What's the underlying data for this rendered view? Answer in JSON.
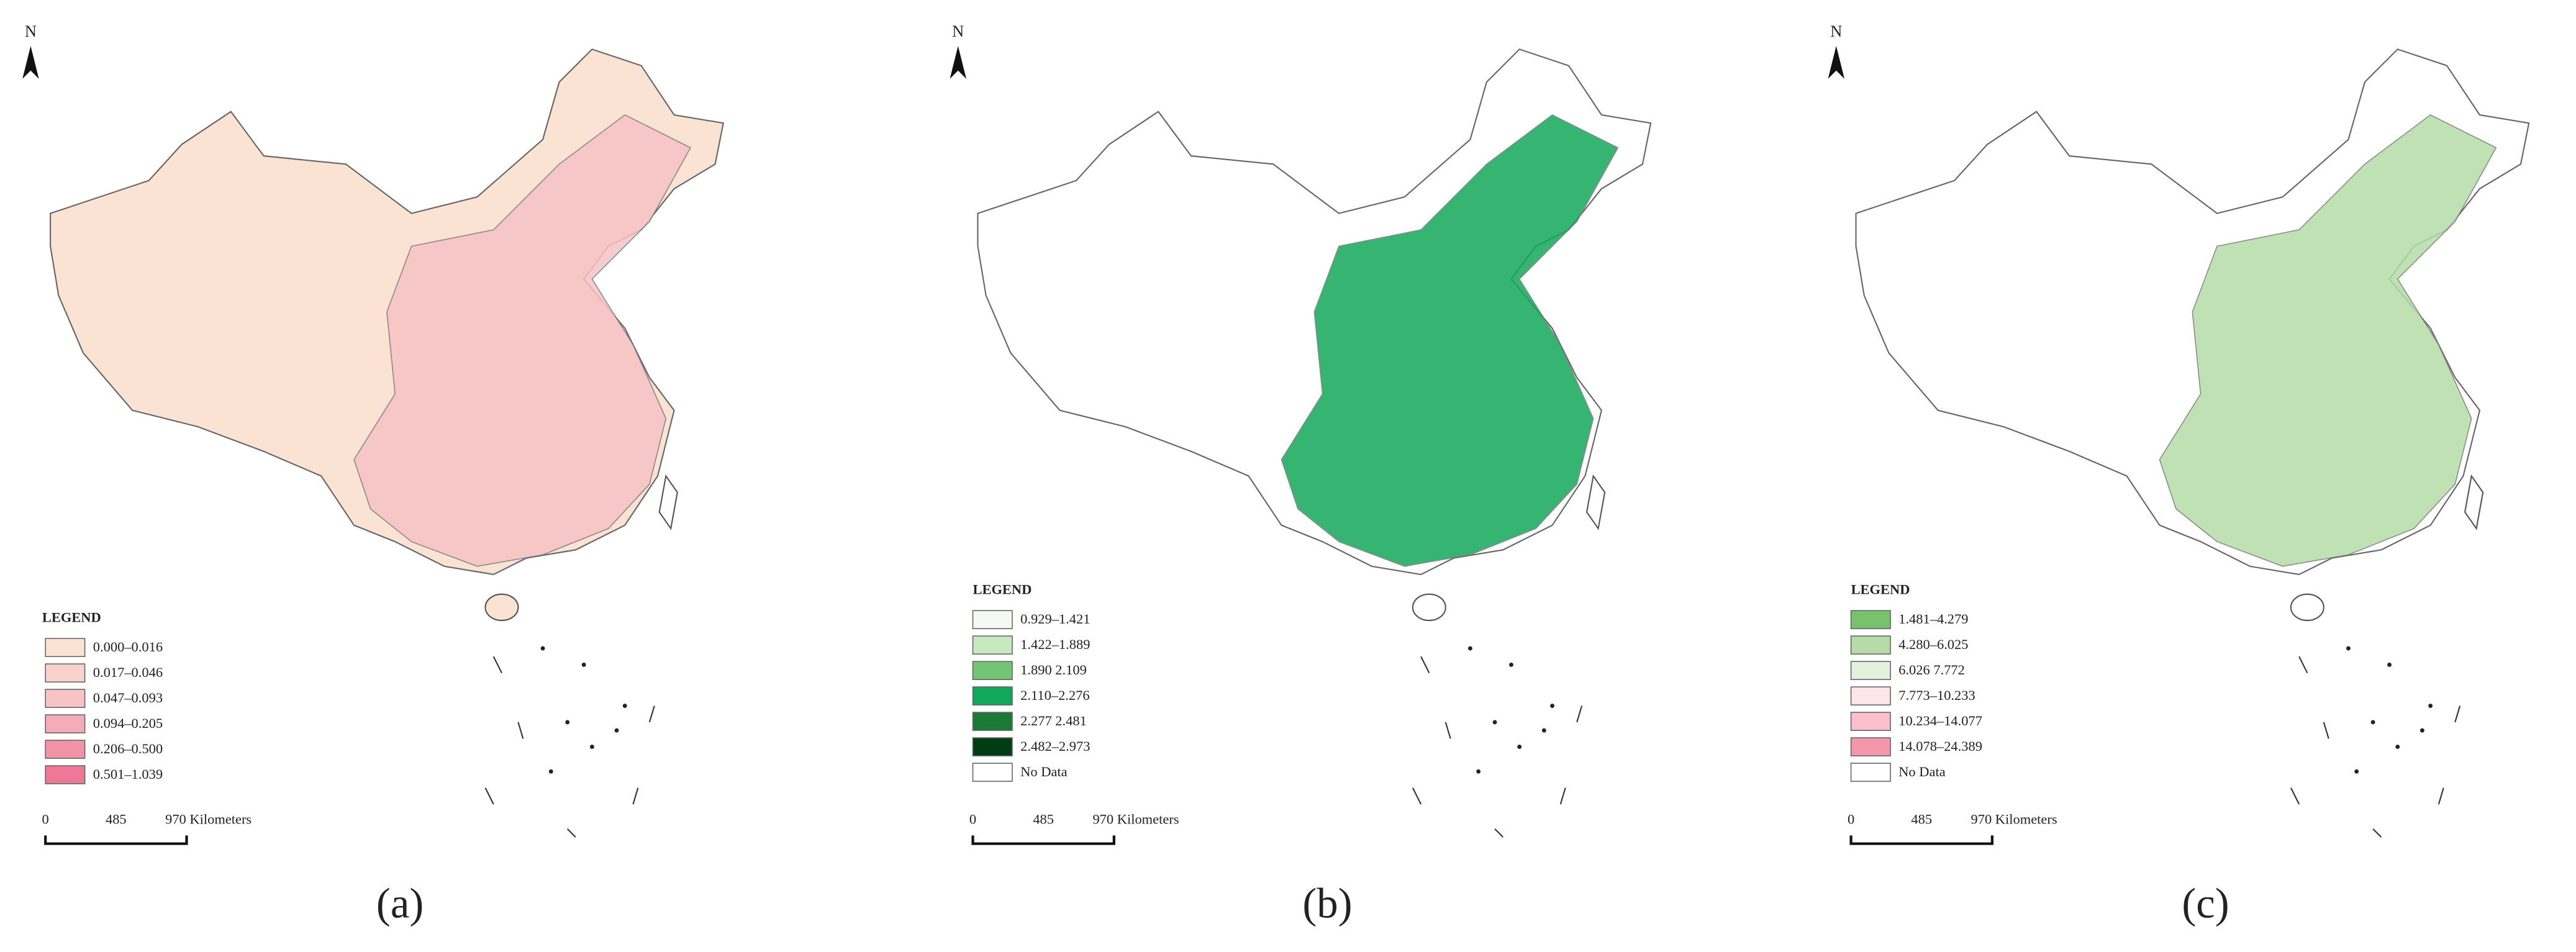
{
  "panels": [
    {
      "label": "(a)",
      "north": "N",
      "legend_title": "LEGEND",
      "legend": [
        {
          "label": "0.000–0.016",
          "color": "#fbe3d3"
        },
        {
          "label": "0.017–0.046",
          "color": "#f9d2cc"
        },
        {
          "label": "0.047–0.093",
          "color": "#f7c3c6"
        },
        {
          "label": "0.094–0.205",
          "color": "#f5acb9"
        },
        {
          "label": "0.206–0.500",
          "color": "#f293a8"
        },
        {
          "label": "0.501–1.039",
          "color": "#ee7896"
        }
      ],
      "scale": [
        "0",
        "485",
        "970 Kilometers"
      ]
    },
    {
      "label": "(b)",
      "north": "N",
      "legend_title": "LEGEND",
      "legend": [
        {
          "label": "0.929–1.421",
          "color": "#f4faf1"
        },
        {
          "label": "1.422–1.889",
          "color": "#c7e9c0"
        },
        {
          "label": "1.890 2.109",
          "color": "#74c476"
        },
        {
          "label": "2.110–2.276",
          "color": "#12a85a"
        },
        {
          "label": "2.277 2.481",
          "color": "#1b7a35"
        },
        {
          "label": "2.482–2.973",
          "color": "#003d14"
        },
        {
          "label": "No Data",
          "color": "#ffffff"
        }
      ],
      "scale": [
        "0",
        "485",
        "970 Kilometers"
      ]
    },
    {
      "label": "(c)",
      "north": "N",
      "legend_title": "LEGEND",
      "legend": [
        {
          "label": "1.481–4.279",
          "color": "#78c26b"
        },
        {
          "label": "4.280–6.025",
          "color": "#b5dca8"
        },
        {
          "label": "6.026 7.772",
          "color": "#e3f2dd"
        },
        {
          "label": "7.773–10.233",
          "color": "#fde6ea"
        },
        {
          "label": "10.234–14.077",
          "color": "#f9bfca"
        },
        {
          "label": "14.078–24.389",
          "color": "#f497aa"
        },
        {
          "label": "No Data",
          "color": "#ffffff"
        }
      ],
      "scale": [
        "0",
        "485",
        "970 Kilometers"
      ]
    }
  ]
}
